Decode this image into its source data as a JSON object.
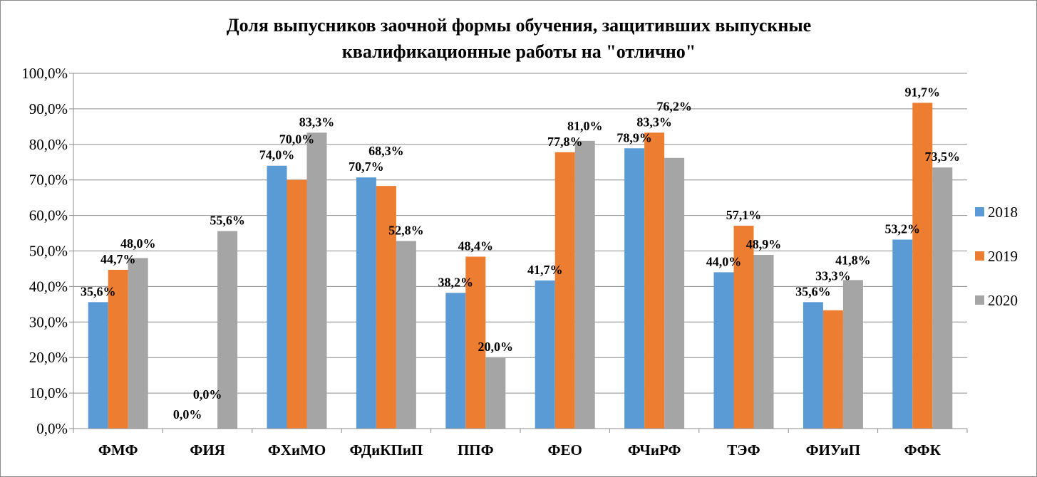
{
  "chart_data": {
    "type": "bar",
    "title_lines": [
      "Доля выпусников заочной формы обучения, защитивших выпускные",
      "квалификационные работы на \"отлично\""
    ],
    "categories": [
      "ФМФ",
      "ФИЯ",
      "ФХиМО",
      "ФДиКПиП",
      "ППФ",
      "ФЕО",
      "ФЧиРФ",
      "ТЭФ",
      "ФИУиП",
      "ФФК"
    ],
    "series": [
      {
        "name": "2018",
        "color": "#5b9bd5",
        "values": [
          35.6,
          0.0,
          74.0,
          70.7,
          38.2,
          41.7,
          78.9,
          44.0,
          35.6,
          53.2
        ],
        "labels": [
          "35,6%",
          "0,0%",
          "74,0%",
          "70,7%",
          "38,2%",
          "41,7%",
          "78,9%",
          "44,0%",
          "35,6%",
          "53,2%"
        ]
      },
      {
        "name": "2019",
        "color": "#ed7d31",
        "values": [
          44.7,
          0.0,
          70.0,
          68.3,
          48.4,
          77.8,
          83.3,
          57.1,
          33.3,
          91.7
        ],
        "labels": [
          "44,7%",
          "0,0%",
          "70,0%",
          "68,3%",
          "48,4%",
          "77,8%",
          "83,3%",
          "57,1%",
          "33,3%",
          "91,7%"
        ]
      },
      {
        "name": "2020",
        "color": "#a5a5a5",
        "values": [
          48.0,
          55.6,
          83.3,
          52.8,
          20.0,
          81.0,
          76.2,
          48.9,
          41.8,
          73.5
        ],
        "labels": [
          "48,0%",
          "55,6%",
          "83,3%",
          "52,8%",
          "20,0%",
          "81,0%",
          "76,2%",
          "48,9%",
          "41,8%",
          "73,5%"
        ]
      }
    ],
    "ylim": [
      0,
      100
    ],
    "yticks": [
      0,
      10,
      20,
      30,
      40,
      50,
      60,
      70,
      80,
      90,
      100
    ],
    "ytick_labels": [
      "0,0%",
      "10,0%",
      "20,0%",
      "30,0%",
      "40,0%",
      "50,0%",
      "60,0%",
      "70,0%",
      "80,0%",
      "90,0%",
      "100,0%"
    ],
    "grid": true,
    "legend": "right"
  }
}
